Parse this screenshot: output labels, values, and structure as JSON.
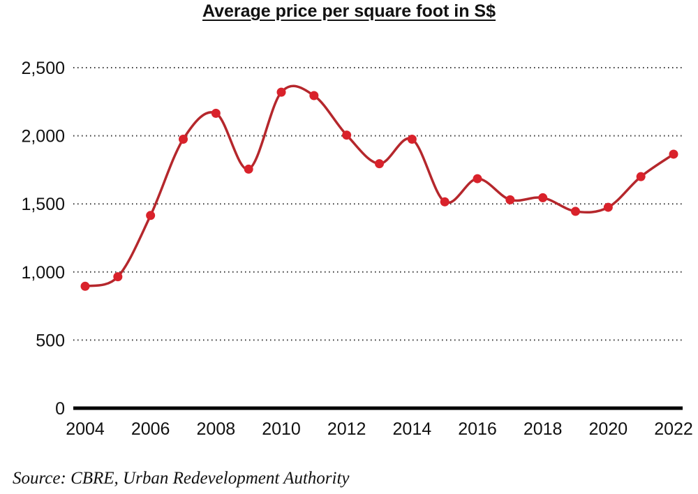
{
  "chart_data": {
    "type": "line",
    "title": "Average price per square foot in S$",
    "xlabel": "",
    "ylabel": "",
    "x": [
      2004,
      2005,
      2006,
      2007,
      2008,
      2009,
      2010,
      2011,
      2012,
      2013,
      2014,
      2015,
      2016,
      2017,
      2018,
      2019,
      2020,
      2021,
      2022
    ],
    "series": [
      {
        "values": [
          895,
          965,
          1415,
          1975,
          2165,
          1755,
          2320,
          2295,
          2005,
          1795,
          1975,
          1515,
          1685,
          1530,
          1545,
          1445,
          1475,
          1700,
          1865
        ]
      }
    ],
    "xticks": [
      "2004",
      "2006",
      "2008",
      "2010",
      "2012",
      "2014",
      "2016",
      "2018",
      "2020",
      "2022"
    ],
    "yticks": [
      "0",
      "500",
      "1,000",
      "1,500",
      "2,000",
      "2,500"
    ],
    "xlim": [
      2004,
      2022
    ],
    "ylim": [
      0,
      2500
    ],
    "grid": "horizontal dotted",
    "line_color": "#b5272c",
    "marker_color": "#d9222b"
  },
  "source": "Source: CBRE, Urban Redevelopment Authority"
}
